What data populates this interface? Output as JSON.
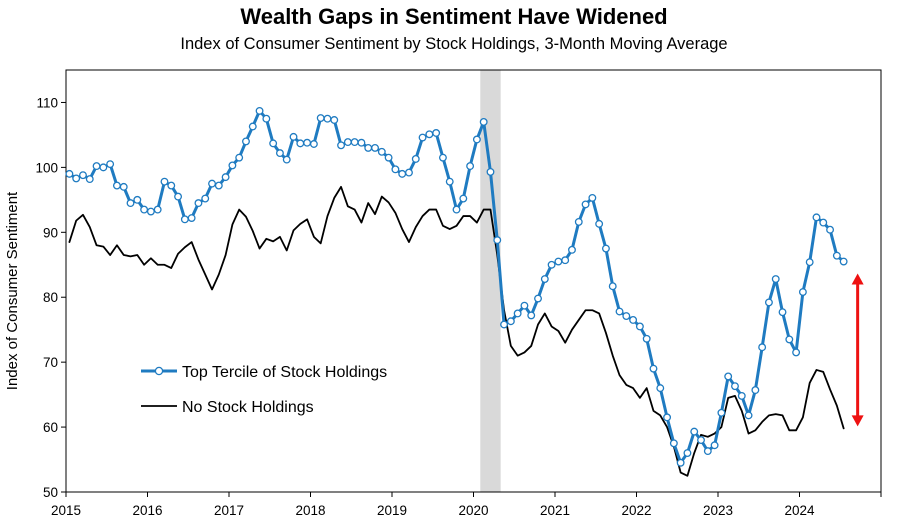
{
  "chart_data": {
    "type": "line",
    "title": "Wealth Gaps in Sentiment Have Widened",
    "subtitle": "Index of Consumer Sentiment by Stock Holdings, 3-Month Moving Average",
    "xlabel": "",
    "ylabel": "Index of Consumer Sentiment",
    "ylim": [
      50,
      115
    ],
    "yticks": [
      "50",
      "60",
      "70",
      "80",
      "90",
      "100",
      "110"
    ],
    "xticks": [
      "2015",
      "2016",
      "2017",
      "2018",
      "2019",
      "2020",
      "2021",
      "2022",
      "2023",
      "2024"
    ],
    "x_start": "2015-01",
    "x_end": "2024-12",
    "frequency": "monthly",
    "shaded_period": {
      "start": "2020-02",
      "end": "2020-04"
    },
    "legend_position": "center-left",
    "annotation": "double-headed arrow showing the gap between the two series in 2024",
    "series": [
      {
        "name": "Top Tercile of Stock Holdings",
        "color": "#1f7bc1",
        "marker": "circle",
        "start": "2015-01",
        "values": [
          99.0,
          98.3,
          98.8,
          98.2,
          100.2,
          100.0,
          100.5,
          97.2,
          97.0,
          94.5,
          95.0,
          93.5,
          93.2,
          93.5,
          97.8,
          97.2,
          95.5,
          92.0,
          92.2,
          94.5,
          95.2,
          97.5,
          97.2,
          98.5,
          100.3,
          101.5,
          104.0,
          106.3,
          108.7,
          107.5,
          103.7,
          102.2,
          101.2,
          104.7,
          103.7,
          103.8,
          103.6,
          107.6,
          107.5,
          107.3,
          103.4,
          103.9,
          103.9,
          103.8,
          103.0,
          103.0,
          102.4,
          101.5,
          99.7,
          99.0,
          99.2,
          101.3,
          104.6,
          105.1,
          105.3,
          101.5,
          97.8,
          93.5,
          95.2,
          100.2,
          104.3,
          107.0,
          99.3,
          88.8,
          75.8,
          76.3,
          77.5,
          78.7,
          77.2,
          79.8,
          82.8,
          85.0,
          85.5,
          85.7,
          87.3,
          91.6,
          94.3,
          95.3,
          91.3,
          87.5,
          81.7,
          77.8,
          77.1,
          76.5,
          75.5,
          73.6,
          69.0,
          66.0,
          61.5,
          57.5,
          54.5,
          56.0,
          59.3,
          58.0,
          56.3,
          57.2,
          62.2,
          67.8,
          66.3,
          64.8,
          61.8,
          65.7,
          72.3,
          79.2,
          82.8,
          77.7,
          73.5,
          71.5,
          80.8,
          85.4,
          92.3,
          91.5,
          90.4,
          86.4,
          85.5
        ]
      },
      {
        "name": "No Stock Holdings",
        "color": "#000000",
        "marker": "none",
        "start": "2015-01",
        "values": [
          88.5,
          91.8,
          92.7,
          90.8,
          88.0,
          87.8,
          86.5,
          88.0,
          86.5,
          86.3,
          86.5,
          85.0,
          86.0,
          85.0,
          85.0,
          84.5,
          86.7,
          87.7,
          88.5,
          85.8,
          83.5,
          81.2,
          83.5,
          86.5,
          91.2,
          93.5,
          92.4,
          90.2,
          87.5,
          89.0,
          88.6,
          89.3,
          87.2,
          90.3,
          91.3,
          92.0,
          89.3,
          88.3,
          92.5,
          95.3,
          97.0,
          94.0,
          93.5,
          91.5,
          94.5,
          92.8,
          95.5,
          94.6,
          93.0,
          90.5,
          88.5,
          90.8,
          92.5,
          93.5,
          93.5,
          91.0,
          90.5,
          91.0,
          92.5,
          92.5,
          91.5,
          93.5,
          93.5,
          86.5,
          78.0,
          72.5,
          71.0,
          71.5,
          72.5,
          75.8,
          77.5,
          75.5,
          74.8,
          73.0,
          75.0,
          76.5,
          78.0,
          78.0,
          77.5,
          74.5,
          71.0,
          68.0,
          66.5,
          66.0,
          64.5,
          66.0,
          62.5,
          61.8,
          60.0,
          57.0,
          53.0,
          52.5,
          56.0,
          58.8,
          58.5,
          59.0,
          60.0,
          64.5,
          64.8,
          62.5,
          59.0,
          59.5,
          60.8,
          61.8,
          62.0,
          61.8,
          59.5,
          59.5,
          61.5,
          66.8,
          68.8,
          68.5,
          65.8,
          63.3,
          59.8
        ]
      }
    ]
  },
  "annotation_color": "#ee1111",
  "shading_color": "#d9d9d9"
}
